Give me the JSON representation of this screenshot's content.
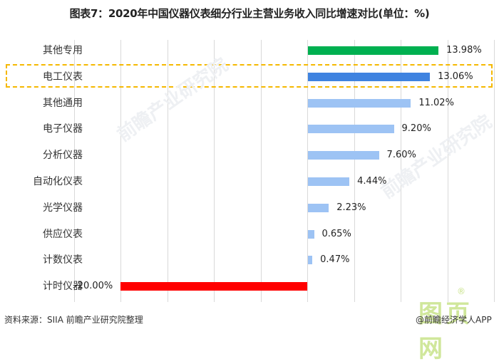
{
  "title": "图表7：2020年中国仪器仪表细分行业主营业务收入同比增速对比(单位：%)",
  "source": "资料来源：SIIA 前瞻产业研究院整理",
  "watermark": {
    "text": "前瞻产业研究院",
    "logo": "图页网",
    "registered": "®",
    "app": "@前瞻经济学人APP"
  },
  "colors": {
    "highlight_green": "#00b050",
    "highlight_blue": "#3f83e0",
    "default_bar": "#9dc3f4",
    "negative": "#ff0000",
    "highlight_box": "#f5b800"
  },
  "rows": [
    {
      "label": "其他专用",
      "value": 13.98,
      "display": "13.98%",
      "color": "#00b050"
    },
    {
      "label": "电工仪表",
      "value": 13.06,
      "display": "13.06%",
      "color": "#3f83e0"
    },
    {
      "label": "其他通用",
      "value": 11.02,
      "display": "11.02%",
      "color": "#9dc3f4"
    },
    {
      "label": "电子仪器",
      "value": 9.2,
      "display": "9.20%",
      "color": "#9dc3f4"
    },
    {
      "label": "分析仪器",
      "value": 7.6,
      "display": "7.60%",
      "color": "#9dc3f4"
    },
    {
      "label": "自动化仪表",
      "value": 4.44,
      "display": "4.44%",
      "color": "#9dc3f4"
    },
    {
      "label": "光学仪器",
      "value": 2.23,
      "display": "2.23%",
      "color": "#9dc3f4"
    },
    {
      "label": "供应仪表",
      "value": 0.65,
      "display": "0.65%",
      "color": "#9dc3f4"
    },
    {
      "label": "计数仪表",
      "value": 0.47,
      "display": "0.47%",
      "color": "#9dc3f4"
    },
    {
      "label": "计时仪器",
      "value": -20.0,
      "display": "-20.00%",
      "color": "#ff0000"
    }
  ],
  "chart_data": {
    "type": "bar",
    "orientation": "horizontal",
    "title": "图表7：2020年中国仪器仪表细分行业主营业务收入同比增速对比(单位：%)",
    "xlabel": "",
    "ylabel": "",
    "categories": [
      "其他专用",
      "电工仪表",
      "其他通用",
      "电子仪器",
      "分析仪器",
      "自动化仪表",
      "光学仪器",
      "供应仪表",
      "计数仪表",
      "计时仪器"
    ],
    "values": [
      13.98,
      13.06,
      11.02,
      9.2,
      7.6,
      4.44,
      2.23,
      0.65,
      0.47,
      -20.0
    ],
    "data_labels": [
      "13.98%",
      "13.06%",
      "11.02%",
      "9.20%",
      "7.60%",
      "4.44%",
      "2.23%",
      "0.65%",
      "0.47%",
      "-20.00%"
    ],
    "xlim": [
      -25,
      20
    ],
    "grid": true,
    "grid_step": 5,
    "legend": null,
    "highlighted_category": "电工仪表",
    "source": "资料来源：SIIA 前瞻产业研究院整理"
  }
}
